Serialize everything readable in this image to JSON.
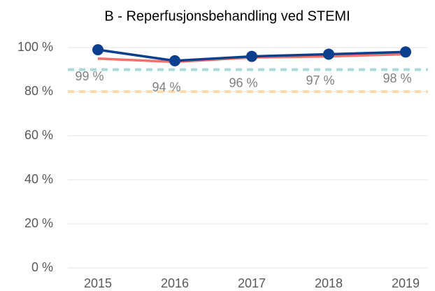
{
  "chart_data": {
    "type": "line",
    "title": "B - Reperfusjonsbehandling ved STEMI",
    "categories": [
      "2015",
      "2016",
      "2017",
      "2018",
      "2019"
    ],
    "series": [
      {
        "color": "#f4706a",
        "values": [
          95,
          93.5,
          95.5,
          96,
          97
        ]
      },
      {
        "color": "#0d3f8f",
        "values": [
          99,
          94,
          96,
          97,
          98
        ],
        "markers": true,
        "value_labels": [
          "99 %",
          "94 %",
          "96 %",
          "97 %",
          "98 %"
        ]
      }
    ],
    "reference_lines": [
      {
        "value": 90,
        "color": "#a9d9dd"
      },
      {
        "value": 80,
        "color": "#fbdcaa"
      }
    ],
    "ylim": [
      0,
      100
    ],
    "yticks": [
      {
        "value": 0,
        "label": "0 %"
      },
      {
        "value": 20,
        "label": "20 %"
      },
      {
        "value": 40,
        "label": "40 %"
      },
      {
        "value": 60,
        "label": "60 %"
      },
      {
        "value": 80,
        "label": "80 %"
      },
      {
        "value": 100,
        "label": "100 %"
      }
    ],
    "grid": true
  }
}
